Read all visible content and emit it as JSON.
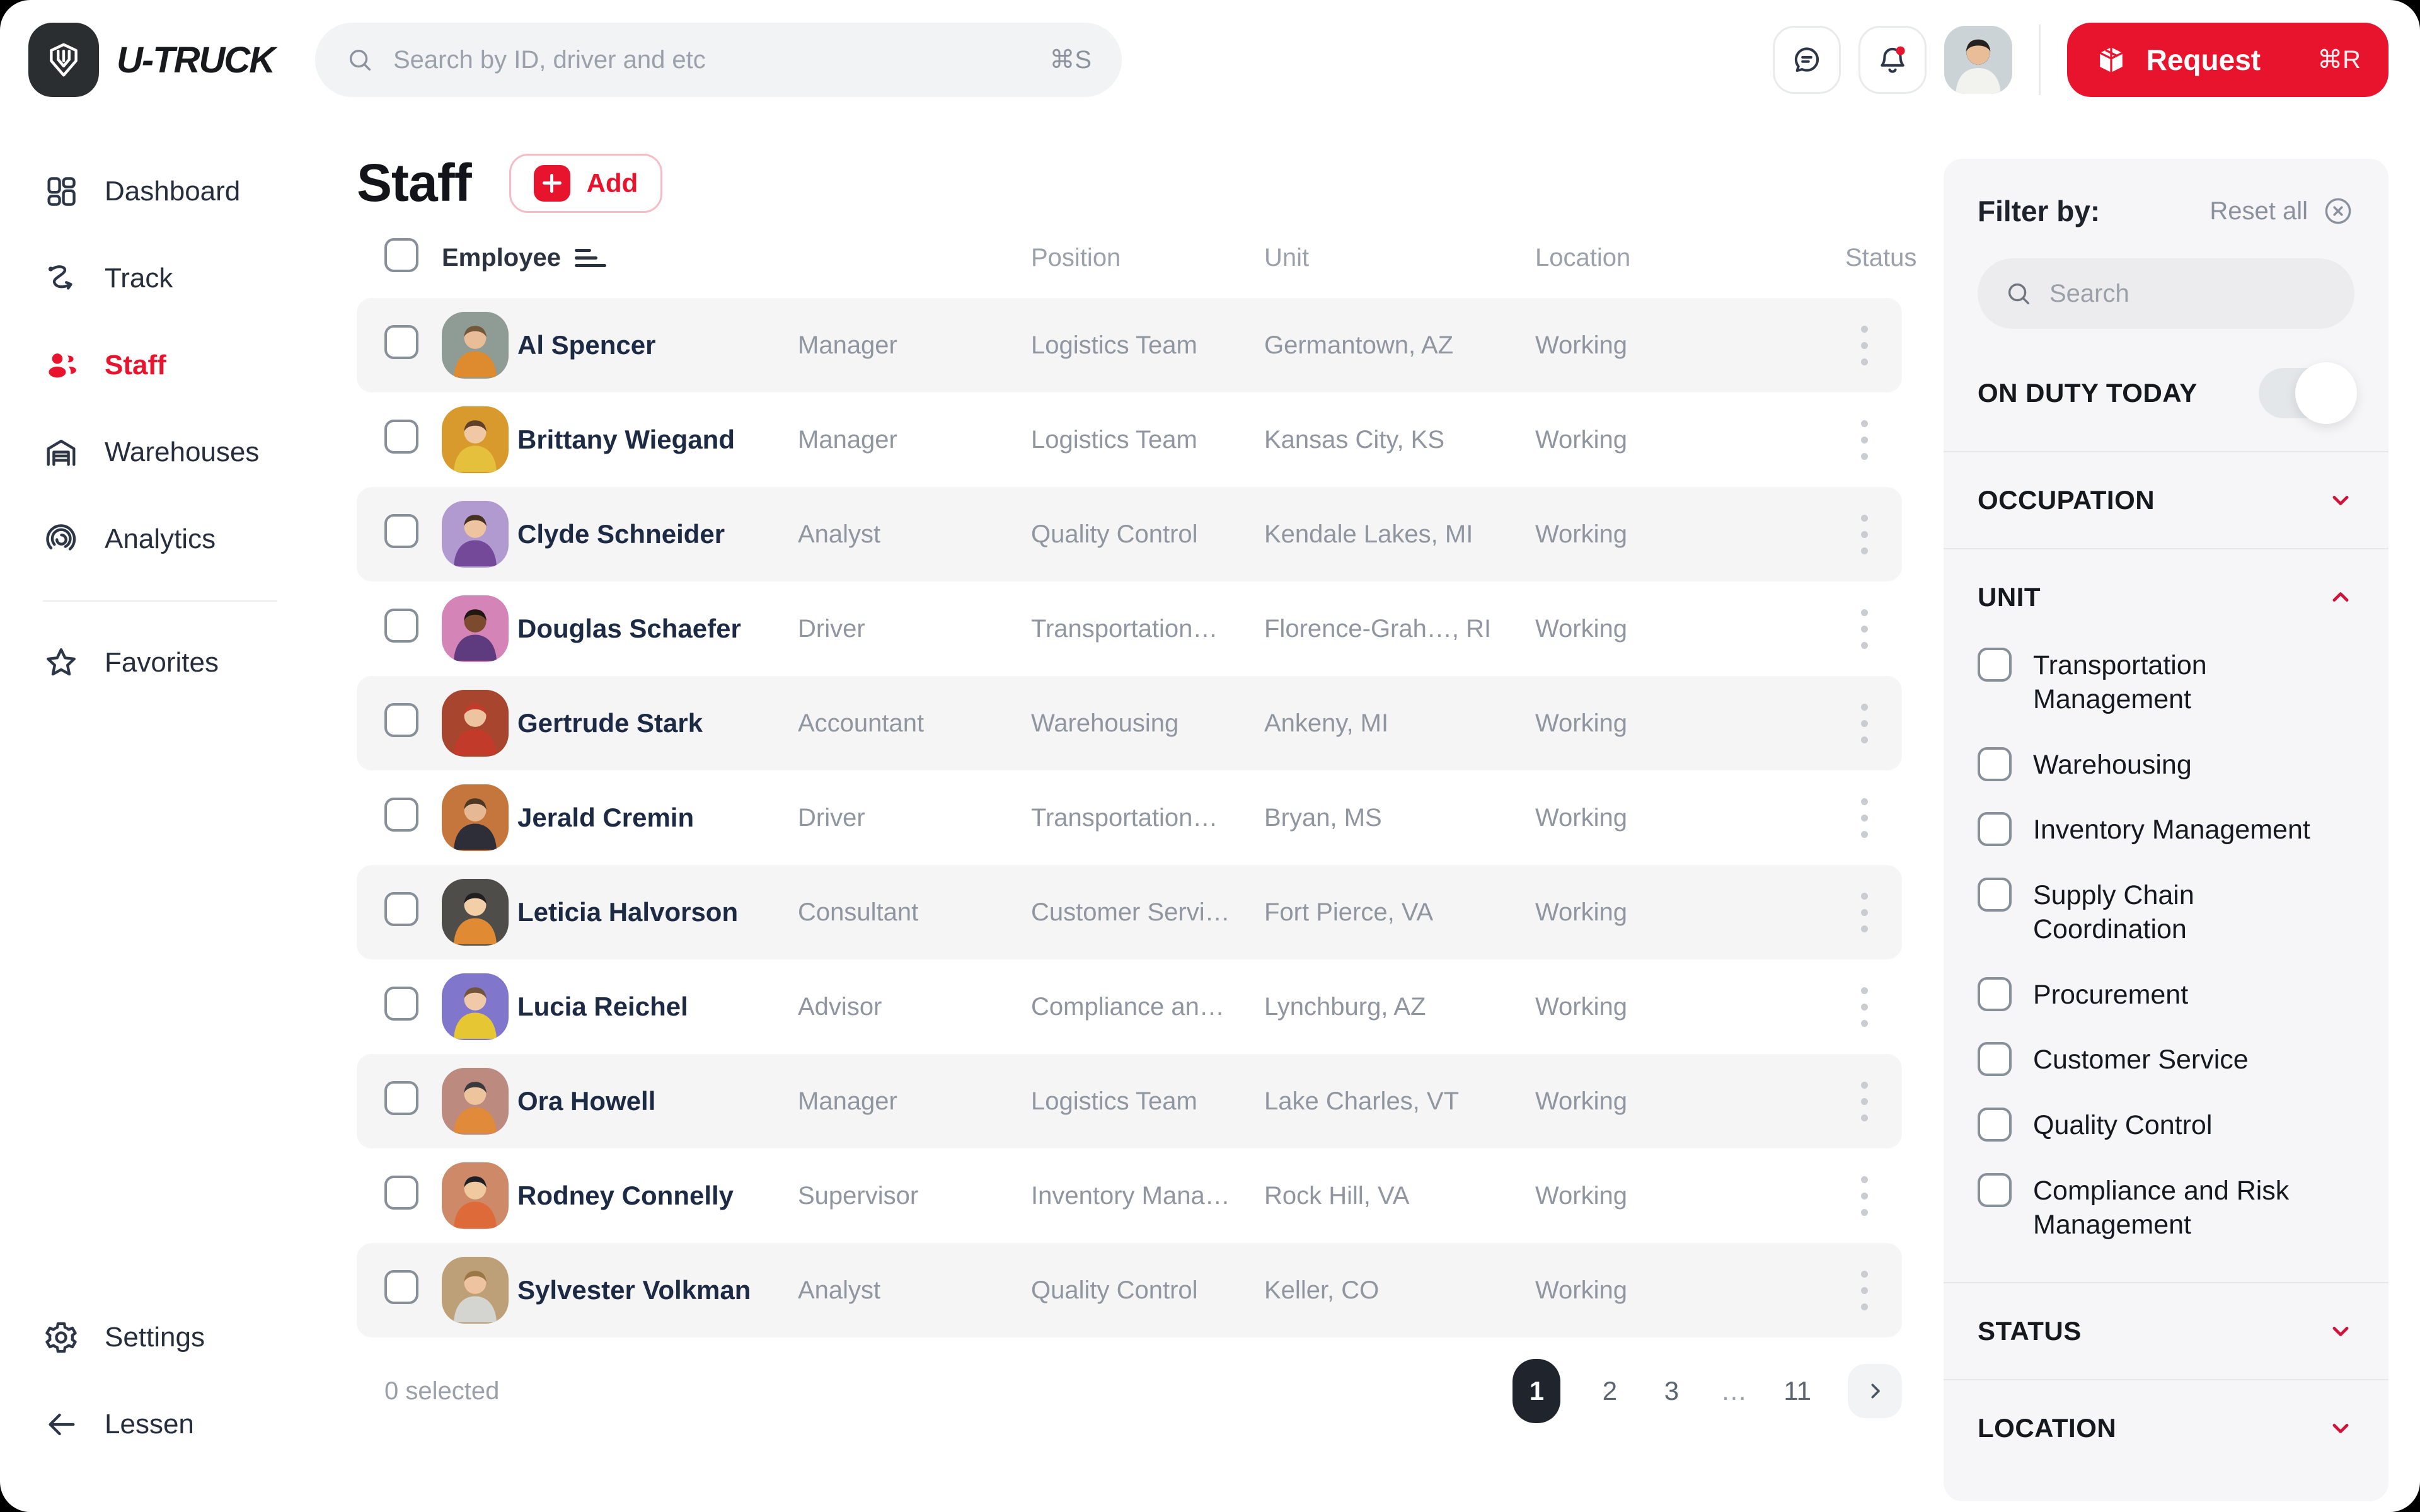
{
  "app": {
    "name": "U-TRUCK"
  },
  "topbar": {
    "search_placeholder": "Search by ID, driver and etc",
    "search_shortcut": "⌘S",
    "request_label": "Request",
    "request_shortcut": "⌘R"
  },
  "sidebar": {
    "items": [
      {
        "label": "Dashboard",
        "icon": "dashboard",
        "active": false
      },
      {
        "label": "Track",
        "icon": "track",
        "active": false
      },
      {
        "label": "Staff",
        "icon": "staff",
        "active": true
      },
      {
        "label": "Warehouses",
        "icon": "warehouse",
        "active": false
      },
      {
        "label": "Analytics",
        "icon": "analytics",
        "active": false
      }
    ],
    "favorites_label": "Favorites",
    "settings_label": "Settings",
    "collapse_label": "Lessen"
  },
  "page": {
    "title": "Staff",
    "add_label": "Add"
  },
  "table": {
    "header": {
      "employee": "Employee",
      "position": "Position",
      "unit": "Unit",
      "location": "Location",
      "status": "Status"
    },
    "rows": [
      {
        "name": "Al Spencer",
        "position": "Manager",
        "unit": "Logistics Team",
        "location": "Germantown, AZ",
        "status": "Working",
        "avatar": {
          "bg": "#8f9c95",
          "shirt": "#de8a2f",
          "skin": "#e9bd98",
          "hair": "#74583a"
        }
      },
      {
        "name": "Brittany Wiegand",
        "position": "Manager",
        "unit": "Logistics Team",
        "location": "Kansas City, KS",
        "status": "Working",
        "avatar": {
          "bg": "#d89a2d",
          "shirt": "#e4c03c",
          "skin": "#f0c9a4",
          "hair": "#5f4129"
        }
      },
      {
        "name": "Clyde Schneider",
        "position": "Analyst",
        "unit": "Quality Control",
        "location": "Kendale Lakes, MI",
        "status": "Working",
        "avatar": {
          "bg": "#b19ad0",
          "shirt": "#74499a",
          "skin": "#eec3a0",
          "hair": "#45321f"
        }
      },
      {
        "name": "Douglas Schaefer",
        "position": "Driver",
        "unit": "Transportation…",
        "location": "Florence-Grah…, RI",
        "status": "Working",
        "avatar": {
          "bg": "#d584b8",
          "shirt": "#5d3b7e",
          "skin": "#7c4b2f",
          "hair": "#201713"
        }
      },
      {
        "name": "Gertrude Stark",
        "position": "Accountant",
        "unit": "Warehousing",
        "location": "Ankeny, MI",
        "status": "Working",
        "avatar": {
          "bg": "#a7452f",
          "shirt": "#c23b2a",
          "skin": "#eec3a0",
          "hair": "#c23b2a"
        }
      },
      {
        "name": "Jerald Cremin",
        "position": "Driver",
        "unit": "Transportation…",
        "location": "Bryan, MS",
        "status": "Working",
        "avatar": {
          "bg": "#c5763d",
          "shirt": "#2e2e38",
          "skin": "#e6b894",
          "hair": "#4d3826"
        }
      },
      {
        "name": "Leticia Halvorson",
        "position": "Consultant",
        "unit": "Customer Servi…",
        "location": "Fort Pierce, VA",
        "status": "Working",
        "avatar": {
          "bg": "#4f4d4a",
          "shirt": "#e08a33",
          "skin": "#f2cfa6",
          "hair": "#22201f"
        }
      },
      {
        "name": "Lucia Reichel",
        "position": "Advisor",
        "unit": "Compliance an…",
        "location": "Lynchburg, AZ",
        "status": "Working",
        "avatar": {
          "bg": "#8077cd",
          "shirt": "#e6c733",
          "skin": "#f0c9a8",
          "hair": "#73543a"
        }
      },
      {
        "name": "Ora Howell",
        "position": "Manager",
        "unit": "Logistics Team",
        "location": "Lake Charles, VT",
        "status": "Working",
        "avatar": {
          "bg": "#bd8a80",
          "shirt": "#e08a3a",
          "skin": "#edc49c",
          "hair": "#3a3a3c"
        }
      },
      {
        "name": "Rodney Connelly",
        "position": "Supervisor",
        "unit": "Inventory Mana…",
        "location": "Rock Hill, VA",
        "status": "Working",
        "avatar": {
          "bg": "#cd8968",
          "shirt": "#de6a3a",
          "skin": "#f0c9a0",
          "hair": "#1f1f26"
        }
      },
      {
        "name": "Sylvester Volkman",
        "position": "Analyst",
        "unit": "Quality Control",
        "location": "Keller, CO",
        "status": "Working",
        "avatar": {
          "bg": "#bda078",
          "shirt": "#d4d4d0",
          "skin": "#eec3a0",
          "hair": "#9a7747"
        }
      }
    ]
  },
  "pagination": {
    "selected_text": "0 selected",
    "pages": [
      "1",
      "2",
      "3",
      "…",
      "11"
    ],
    "active_page": "1"
  },
  "filters": {
    "title": "Filter by:",
    "reset_label": "Reset all",
    "search_placeholder": "Search",
    "on_duty_label": "ON DUTY TODAY",
    "on_duty_enabled": true,
    "occupation_label": "OCCUPATION",
    "unit_label": "UNIT",
    "unit_options": [
      "Transportation Management",
      "Warehousing",
      "Inventory Management",
      "Supply Chain Coordination",
      "Procurement",
      "Customer Service",
      "Quality Control",
      "Compliance and Risk Management"
    ],
    "status_label": "STATUS",
    "location_label": "LOCATION"
  },
  "colors": {
    "accent_red": "#e8132c",
    "row_stripe": "#f5f5f6",
    "panel_bg": "#f6f6f8",
    "name_text": "#1d2a44",
    "muted_text": "#8f96a0"
  }
}
